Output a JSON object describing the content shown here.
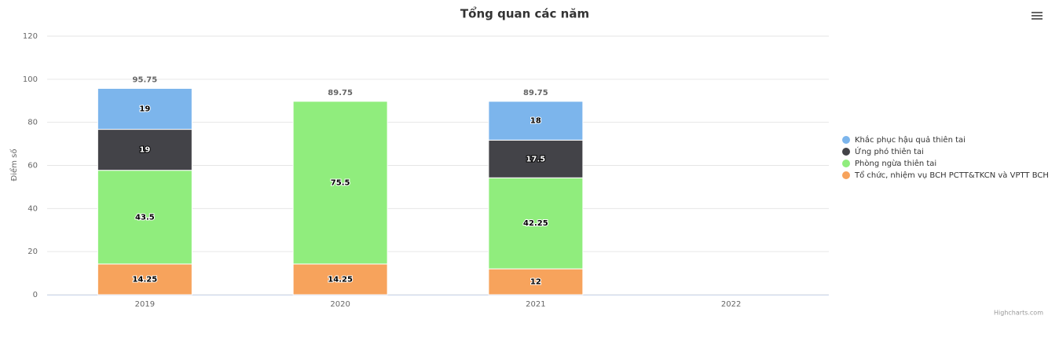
{
  "chart_data": {
    "type": "stacked_bar",
    "title": "Tổng quan các năm",
    "y_axis_label": "Điểm số",
    "categories": [
      "2019",
      "2020",
      "2021",
      "2022"
    ],
    "series": [
      {
        "name": "Khắc phục hậu quả thiên tai",
        "color": "#7cb5ec",
        "values": [
          19,
          null,
          18,
          null
        ]
      },
      {
        "name": "Ứng phó thiên tai",
        "color": "#434348",
        "values": [
          19,
          null,
          17.5,
          null
        ]
      },
      {
        "name": "Phòng ngừa thiên tai",
        "color": "#90ed7d",
        "values": [
          43.5,
          75.5,
          42.25,
          null
        ]
      },
      {
        "name": "Tổ chức, nhiệm vụ BCH PCTT&TKCN và VPTT BCH",
        "color": "#f7a35c",
        "values": [
          14.25,
          14.25,
          12,
          null
        ]
      }
    ],
    "stack_totals": [
      95.75,
      89.75,
      89.75,
      null
    ],
    "ylim": [
      0,
      120
    ],
    "yticks": [
      0,
      20,
      40,
      60,
      80,
      100,
      120
    ],
    "grid": true,
    "legend": "right",
    "credits": "Highcharts.com"
  }
}
